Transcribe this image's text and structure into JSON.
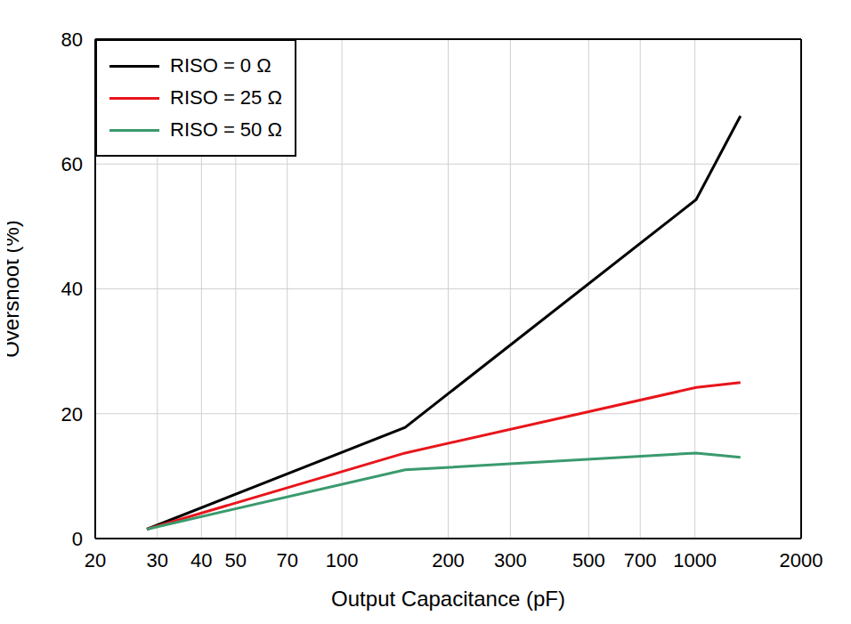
{
  "chart_data": {
    "type": "line",
    "xlabel": "Output Capacitance (pF)",
    "ylabel": "Overshoot (%)",
    "log": "x",
    "grid": true,
    "legend": "top left",
    "xlim": [
      20,
      2000
    ],
    "xticks": [
      20,
      30,
      40,
      50,
      70,
      100,
      200,
      300,
      500,
      700,
      1000,
      2000
    ],
    "ylim": [
      0,
      80
    ],
    "yticks": [
      0,
      20,
      40,
      60,
      80
    ],
    "x": [
      28,
      151,
      1008,
      1346
    ],
    "series": [
      {
        "name": "RISO = 0 Ω",
        "color": "#000000",
        "values": [
          1.5,
          17.8,
          54.3,
          67.7
        ]
      },
      {
        "name": "RISO = 25 Ω",
        "color": "#e8151b",
        "values": [
          1.5,
          13.7,
          24.2,
          25.0
        ]
      },
      {
        "name": "RISO = 50 Ω",
        "color": "#3a9a6e",
        "values": [
          1.5,
          11.0,
          13.7,
          13.0
        ]
      }
    ]
  }
}
